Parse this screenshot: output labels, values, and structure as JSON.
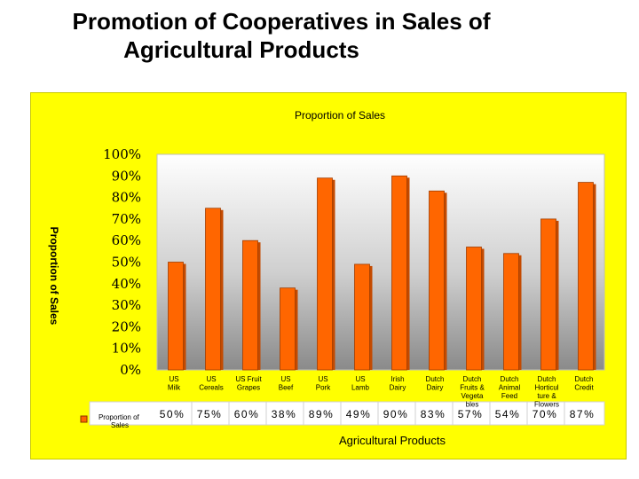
{
  "page": {
    "title_line1": "Promotion of Cooperatives in Sales of",
    "title_line2": "Agricultural Products"
  },
  "colors": {
    "panel": "#ffff00",
    "bar": "#ff6600",
    "bar_dark": "#c44a00"
  },
  "chart_data": {
    "type": "bar",
    "title": "Proportion of Sales",
    "xlabel": "Agricultural Products",
    "ylabel": "Proportion of Sales",
    "ylim": [
      0,
      100
    ],
    "yticks": [
      "0%",
      "10%",
      "20%",
      "30%",
      "40%",
      "50%",
      "60%",
      "70%",
      "80%",
      "90%",
      "100%"
    ],
    "grid": false,
    "legend": "bottom-left",
    "categories": [
      [
        "US",
        "Milk"
      ],
      [
        "US",
        "Cereals"
      ],
      [
        "US Fruit",
        "Grapes"
      ],
      [
        "US",
        "Beef"
      ],
      [
        "US",
        "Pork"
      ],
      [
        "US",
        "Lamb"
      ],
      [
        "Irish",
        "Dairy"
      ],
      [
        "Dutch",
        "Dairy"
      ],
      [
        "Dutch",
        "Fruits &",
        "Vegeta",
        "bles"
      ],
      [
        "Dutch",
        "Animal",
        "Feed"
      ],
      [
        "Dutch",
        "Horticul",
        "ture &",
        "Flowers"
      ],
      [
        "Dutch",
        "Credit"
      ]
    ],
    "series": [
      {
        "name": "Proportion of Sales",
        "values": [
          50,
          75,
          60,
          38,
          89,
          49,
          90,
          83,
          57,
          54,
          70,
          87
        ],
        "labels": [
          "50%",
          "75%",
          "60%",
          "38%",
          "89%",
          "49%",
          "90%",
          "83%",
          "57%",
          "54%",
          "70%",
          "87%"
        ]
      }
    ]
  }
}
